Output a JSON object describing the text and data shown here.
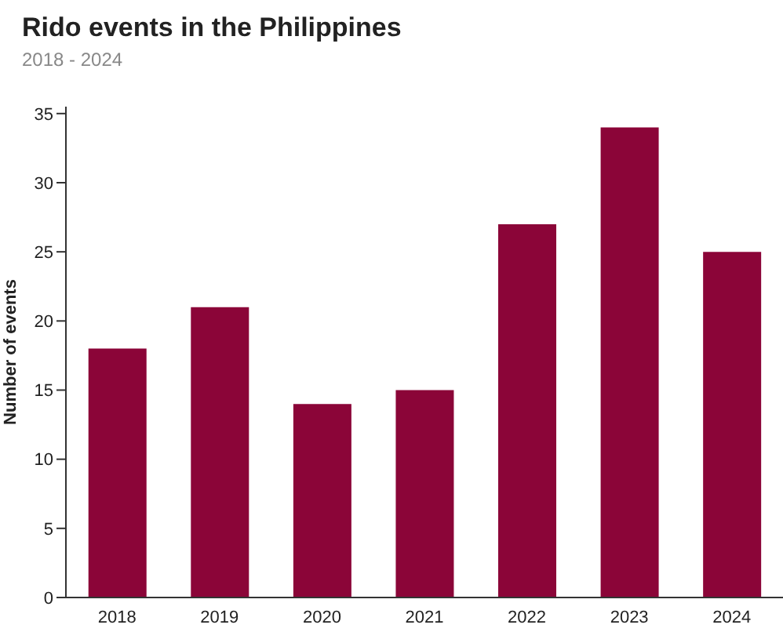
{
  "chart_data": {
    "type": "bar",
    "title": "Rido events in the Philippines",
    "subtitle": "2018 - 2024",
    "ylabel": "Number of events",
    "categories": [
      "2018",
      "2019",
      "2020",
      "2021",
      "2022",
      "2023",
      "2024"
    ],
    "values": [
      18,
      21,
      14,
      15,
      27,
      34,
      25
    ],
    "color": "#8b0538",
    "ylim": [
      0,
      35.5
    ],
    "yticks": [
      0,
      5,
      10,
      15,
      20,
      25,
      30,
      35
    ],
    "grid": false,
    "legend": false
  }
}
